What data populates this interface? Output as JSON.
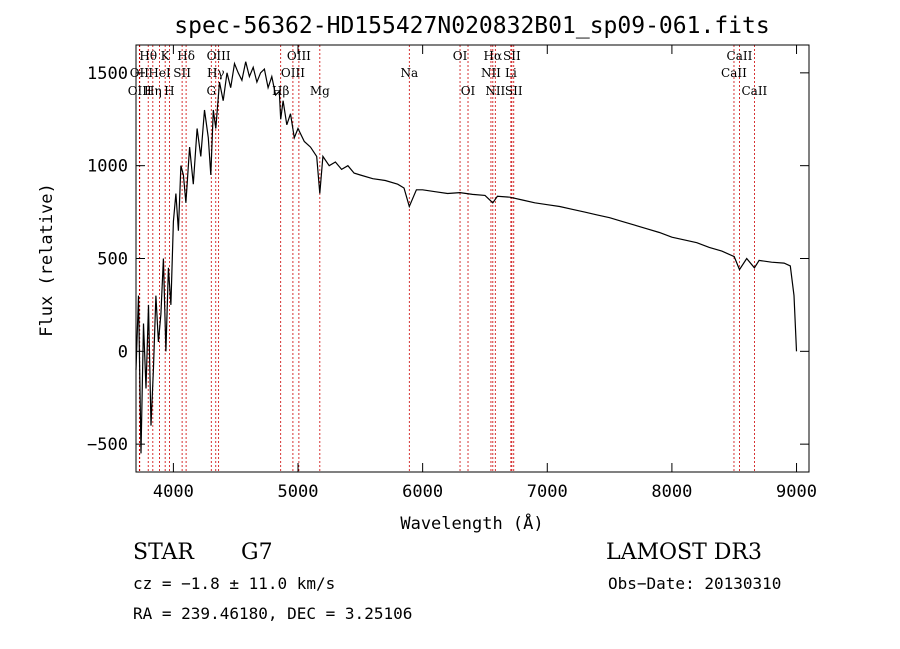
{
  "chart_data": {
    "type": "line",
    "title": "spec-56362-HD155427N020832B01_sp09-061.fits",
    "xlabel": "Wavelength (Å)",
    "ylabel": "Flux (relative)",
    "xlim": [
      3700,
      9100
    ],
    "ylim": [
      -650,
      1650
    ],
    "x_ticks": [
      4000,
      5000,
      6000,
      7000,
      8000,
      9000
    ],
    "y_ticks": [
      -500,
      0,
      500,
      1000,
      1500
    ],
    "grid": false,
    "line_color": "#000000",
    "marker_color": "#cc0000",
    "series": [
      {
        "x": [
          3700,
          3720,
          3740,
          3760,
          3780,
          3800,
          3820,
          3840,
          3860,
          3880,
          3900,
          3920,
          3940,
          3960,
          3980,
          4000,
          4020,
          4040,
          4060,
          4080,
          4100,
          4130,
          4160,
          4190,
          4220,
          4250,
          4280,
          4300,
          4320,
          4340,
          4370,
          4400,
          4430,
          4460,
          4490,
          4520,
          4550,
          4580,
          4610,
          4640,
          4670,
          4700,
          4730,
          4760,
          4790,
          4820,
          4850,
          4861,
          4880,
          4910,
          4940,
          4970,
          5000,
          5050,
          5100,
          5150,
          5175,
          5200,
          5250,
          5300,
          5350,
          5400,
          5450,
          5500,
          5600,
          5700,
          5800,
          5850,
          5893,
          5950,
          6000,
          6100,
          6200,
          6300,
          6400,
          6500,
          6563,
          6600,
          6700,
          6800,
          6900,
          7000,
          7100,
          7200,
          7300,
          7400,
          7500,
          7600,
          7700,
          7800,
          7900,
          8000,
          8100,
          8200,
          8300,
          8400,
          8500,
          8542,
          8600,
          8662,
          8700,
          8800,
          8900,
          8950,
          8980,
          9000
        ],
        "y": [
          -100,
          300,
          -550,
          150,
          -200,
          250,
          -400,
          -100,
          300,
          50,
          200,
          500,
          0,
          450,
          250,
          700,
          850,
          650,
          1000,
          950,
          800,
          1100,
          900,
          1200,
          1050,
          1300,
          1150,
          950,
          1300,
          1200,
          1450,
          1350,
          1500,
          1420,
          1550,
          1500,
          1460,
          1560,
          1480,
          1530,
          1450,
          1500,
          1520,
          1420,
          1480,
          1380,
          1400,
          1250,
          1350,
          1220,
          1280,
          1150,
          1200,
          1130,
          1100,
          1050,
          850,
          1050,
          1000,
          1020,
          980,
          1000,
          960,
          950,
          930,
          920,
          900,
          880,
          780,
          870,
          870,
          860,
          850,
          855,
          845,
          840,
          800,
          835,
          830,
          815,
          800,
          790,
          780,
          765,
          750,
          735,
          720,
          700,
          680,
          660,
          640,
          615,
          600,
          585,
          560,
          540,
          510,
          440,
          500,
          450,
          490,
          480,
          475,
          460,
          300,
          0
        ]
      }
    ],
    "line_markers": [
      {
        "label": "Hθ",
        "x": 3798,
        "row": 1
      },
      {
        "label": "OII",
        "x": 3727,
        "row": 2
      },
      {
        "label": "OIII",
        "x": 3730,
        "row": 3
      },
      {
        "label": "Hη",
        "x": 3835,
        "row": 3
      },
      {
        "label": "K",
        "x": 3934,
        "row": 1
      },
      {
        "label": "HeI",
        "x": 3889,
        "row": 2
      },
      {
        "label": "H",
        "x": 3968,
        "row": 3
      },
      {
        "label": "SII",
        "x": 4070,
        "row": 2
      },
      {
        "label": "Hδ",
        "x": 4102,
        "row": 1
      },
      {
        "label": "OIII",
        "x": 4363,
        "row": 1
      },
      {
        "label": "Hγ",
        "x": 4340,
        "row": 2
      },
      {
        "label": "G",
        "x": 4304,
        "row": 3
      },
      {
        "label": "OIII",
        "x": 5007,
        "row": 1
      },
      {
        "label": "OIII",
        "x": 4959,
        "row": 2
      },
      {
        "label": "Hβ",
        "x": 4861,
        "row": 3
      },
      {
        "label": "Mg",
        "x": 5175,
        "row": 3
      },
      {
        "label": "Na",
        "x": 5893,
        "row": 2
      },
      {
        "label": "OI",
        "x": 6300,
        "row": 1
      },
      {
        "label": "OI",
        "x": 6364,
        "row": 3
      },
      {
        "label": "Hα",
        "x": 6563,
        "row": 1
      },
      {
        "label": "NII",
        "x": 6548,
        "row": 2
      },
      {
        "label": "NII",
        "x": 6583,
        "row": 3
      },
      {
        "label": "SII",
        "x": 6716,
        "row": 1
      },
      {
        "label": "Li",
        "x": 6708,
        "row": 2
      },
      {
        "label": "SII",
        "x": 6731,
        "row": 3
      },
      {
        "label": "CaII",
        "x": 8542,
        "row": 1
      },
      {
        "label": "CaII",
        "x": 8498,
        "row": 2
      },
      {
        "label": "CaII",
        "x": 8662,
        "row": 3
      }
    ]
  },
  "info": {
    "object_class": "STAR",
    "subclass": "G7",
    "survey": "LAMOST DR3",
    "velocity": "cz = −1.8 ± 11.0 km/s",
    "obs_date": "Obs−Date: 20130310",
    "coords": "RA = 239.46180, DEC =   3.25106"
  }
}
